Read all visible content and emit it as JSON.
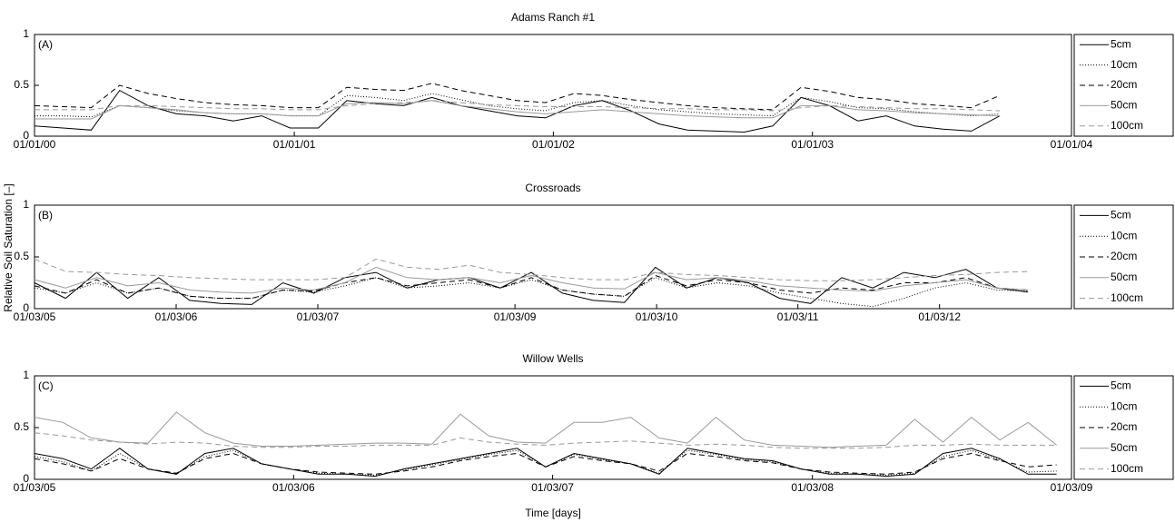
{
  "chart_data": [
    {
      "type": "line",
      "title": "Adams Ranch #1",
      "panel_label": "(A)",
      "x": [
        0,
        40,
        80,
        120,
        160,
        200,
        240,
        280,
        320,
        360,
        400,
        440,
        480,
        520,
        560,
        600,
        640,
        680,
        720,
        760,
        800,
        840,
        880,
        920,
        960,
        1000,
        1040,
        1080,
        1120,
        1160,
        1200,
        1240,
        1280,
        1320,
        1360
      ],
      "xlim": [
        0,
        1461
      ],
      "xticks": [
        {
          "value": 0,
          "label": "01/01/00"
        },
        {
          "value": 366,
          "label": "01/01/01"
        },
        {
          "value": 731,
          "label": "01/01/02"
        },
        {
          "value": 1096,
          "label": "01/01/03"
        },
        {
          "value": 1461,
          "label": "01/01/04"
        }
      ],
      "ylim": [
        0,
        1
      ],
      "yticks": [
        0,
        0.5,
        1
      ],
      "series": [
        {
          "name": "5cm",
          "color": "#000000",
          "linestyle": "solid",
          "values": [
            0.1,
            0.08,
            0.06,
            0.45,
            0.3,
            0.22,
            0.2,
            0.15,
            0.2,
            0.08,
            0.08,
            0.35,
            0.32,
            0.3,
            0.38,
            0.3,
            0.25,
            0.2,
            0.18,
            0.3,
            0.35,
            0.25,
            0.12,
            0.06,
            0.05,
            0.04,
            0.1,
            0.38,
            0.3,
            0.15,
            0.2,
            0.1,
            0.07,
            0.05,
            0.2
          ]
        },
        {
          "name": "10cm",
          "color": "#000000",
          "linestyle": "dotted",
          "values": [
            0.2,
            0.2,
            0.19,
            0.3,
            0.28,
            0.25,
            0.23,
            0.22,
            0.22,
            0.2,
            0.2,
            0.4,
            0.38,
            0.35,
            0.42,
            0.36,
            0.3,
            0.27,
            0.25,
            0.33,
            0.35,
            0.3,
            0.26,
            0.24,
            0.22,
            0.21,
            0.2,
            0.38,
            0.34,
            0.28,
            0.27,
            0.24,
            0.22,
            0.2,
            0.22
          ]
        },
        {
          "name": "20cm",
          "color": "#000000",
          "linestyle": "dashed",
          "values": [
            0.3,
            0.29,
            0.28,
            0.5,
            0.42,
            0.37,
            0.33,
            0.31,
            0.3,
            0.28,
            0.28,
            0.48,
            0.46,
            0.45,
            0.52,
            0.45,
            0.4,
            0.35,
            0.33,
            0.42,
            0.4,
            0.36,
            0.33,
            0.3,
            0.28,
            0.27,
            0.26,
            0.48,
            0.44,
            0.38,
            0.36,
            0.32,
            0.3,
            0.28,
            0.4
          ]
        },
        {
          "name": "50cm",
          "color": "#999999",
          "linestyle": "solid",
          "values": [
            0.17,
            0.17,
            0.17,
            0.3,
            0.28,
            0.26,
            0.23,
            0.22,
            0.22,
            0.2,
            0.2,
            0.32,
            0.33,
            0.32,
            0.35,
            0.3,
            0.27,
            0.24,
            0.22,
            0.24,
            0.26,
            0.24,
            0.22,
            0.2,
            0.19,
            0.18,
            0.18,
            0.3,
            0.3,
            0.26,
            0.25,
            0.23,
            0.22,
            0.21,
            0.2
          ]
        },
        {
          "name": "100cm",
          "color": "#999999",
          "linestyle": "dashed",
          "values": [
            0.26,
            0.26,
            0.26,
            0.3,
            0.3,
            0.29,
            0.28,
            0.27,
            0.27,
            0.26,
            0.26,
            0.3,
            0.32,
            0.33,
            0.35,
            0.33,
            0.31,
            0.3,
            0.29,
            0.29,
            0.29,
            0.28,
            0.27,
            0.27,
            0.26,
            0.26,
            0.25,
            0.28,
            0.3,
            0.29,
            0.28,
            0.27,
            0.27,
            0.26,
            0.25
          ]
        }
      ]
    },
    {
      "type": "line",
      "title": "Crossroads",
      "panel_label": "(B)",
      "ylabel": "Relative Soil Saturation [–]",
      "x": [
        0,
        80,
        160,
        240,
        320,
        400,
        480,
        560,
        640,
        720,
        800,
        880,
        960,
        1040,
        1120,
        1200,
        1280,
        1360,
        1440,
        1520,
        1600,
        1680,
        1760,
        1840,
        1920,
        2000,
        2080,
        2160,
        2240,
        2320,
        2400,
        2480,
        2560
      ],
      "xlim": [
        0,
        2672
      ],
      "xticks": [
        {
          "value": 0,
          "label": "01/03/05"
        },
        {
          "value": 365,
          "label": "01/03/06"
        },
        {
          "value": 730,
          "label": "01/03/07"
        },
        {
          "value": 1238,
          "label": "01/03/09"
        },
        {
          "value": 1603,
          "label": "01/03/10"
        },
        {
          "value": 1967,
          "label": "01/03/11"
        },
        {
          "value": 2332,
          "label": "01/03/12"
        }
      ],
      "ylim": [
        0,
        1
      ],
      "yticks": [
        0,
        0.5,
        1
      ],
      "series": [
        {
          "name": "5cm",
          "color": "#000000",
          "linestyle": "solid",
          "values": [
            0.25,
            0.1,
            0.35,
            0.1,
            0.3,
            0.08,
            0.05,
            0.04,
            0.25,
            0.15,
            0.3,
            0.35,
            0.2,
            0.28,
            0.3,
            0.2,
            0.35,
            0.15,
            0.08,
            0.06,
            0.4,
            0.2,
            0.3,
            0.25,
            0.1,
            0.05,
            0.3,
            0.2,
            0.35,
            0.3,
            0.38,
            0.2,
            0.16
          ]
        },
        {
          "name": "10cm",
          "color": "#000000",
          "linestyle": "dotted",
          "values": [
            0.2,
            0.15,
            0.25,
            0.15,
            0.2,
            0.12,
            0.1,
            0.1,
            0.18,
            0.16,
            0.22,
            0.3,
            0.2,
            0.22,
            0.25,
            0.2,
            0.28,
            0.18,
            0.14,
            0.12,
            0.3,
            0.2,
            0.25,
            0.22,
            0.15,
            0.1,
            0.05,
            0.02,
            0.1,
            0.2,
            0.25,
            0.18,
            0.17
          ]
        },
        {
          "name": "20cm",
          "color": "#000000",
          "linestyle": "dashed",
          "values": [
            0.22,
            0.15,
            0.28,
            0.15,
            0.2,
            0.12,
            0.1,
            0.1,
            0.18,
            0.17,
            0.25,
            0.3,
            0.22,
            0.25,
            0.28,
            0.2,
            0.3,
            0.18,
            0.14,
            0.12,
            0.32,
            0.22,
            0.28,
            0.25,
            0.18,
            0.15,
            0.2,
            0.18,
            0.25,
            0.25,
            0.3,
            0.2,
            0.18
          ]
        },
        {
          "name": "50cm",
          "color": "#999999",
          "linestyle": "solid",
          "values": [
            0.28,
            0.2,
            0.3,
            0.22,
            0.25,
            0.18,
            0.16,
            0.15,
            0.2,
            0.18,
            0.25,
            0.4,
            0.3,
            0.28,
            0.3,
            0.25,
            0.32,
            0.25,
            0.2,
            0.19,
            0.35,
            0.28,
            0.3,
            0.27,
            0.22,
            0.2,
            0.18,
            0.17,
            0.22,
            0.25,
            0.28,
            0.2,
            0.18
          ]
        },
        {
          "name": "100cm",
          "color": "#999999",
          "linestyle": "dashed",
          "values": [
            0.48,
            0.36,
            0.35,
            0.33,
            0.32,
            0.3,
            0.29,
            0.28,
            0.28,
            0.28,
            0.3,
            0.48,
            0.4,
            0.38,
            0.42,
            0.35,
            0.33,
            0.3,
            0.28,
            0.28,
            0.35,
            0.33,
            0.32,
            0.3,
            0.28,
            0.27,
            0.27,
            0.28,
            0.3,
            0.32,
            0.33,
            0.35,
            0.36
          ]
        }
      ]
    },
    {
      "type": "line",
      "title": "Willow Wells",
      "panel_label": "(C)",
      "xlabel": "Time [days]",
      "x": [
        0,
        40,
        80,
        120,
        160,
        200,
        240,
        280,
        320,
        360,
        400,
        440,
        480,
        520,
        560,
        600,
        640,
        680,
        720,
        760,
        800,
        840,
        880,
        920,
        960,
        1000,
        1040,
        1080,
        1120,
        1160,
        1200,
        1240,
        1280,
        1320,
        1360,
        1400,
        1440
      ],
      "xlim": [
        0,
        1461
      ],
      "xticks": [
        {
          "value": 0,
          "label": "01/03/05"
        },
        {
          "value": 365,
          "label": "01/03/06"
        },
        {
          "value": 730,
          "label": "01/03/07"
        },
        {
          "value": 1096,
          "label": "01/03/08"
        },
        {
          "value": 1461,
          "label": "01/03/09"
        }
      ],
      "ylim": [
        0,
        1
      ],
      "yticks": [
        0,
        0.5,
        1
      ],
      "series": [
        {
          "name": "5cm",
          "color": "#000000",
          "linestyle": "solid",
          "values": [
            0.25,
            0.2,
            0.1,
            0.3,
            0.1,
            0.05,
            0.25,
            0.3,
            0.15,
            0.1,
            0.05,
            0.05,
            0.03,
            0.1,
            0.15,
            0.2,
            0.25,
            0.3,
            0.12,
            0.25,
            0.2,
            0.15,
            0.05,
            0.3,
            0.25,
            0.2,
            0.18,
            0.1,
            0.05,
            0.05,
            0.03,
            0.05,
            0.25,
            0.3,
            0.2,
            0.05,
            0.05
          ]
        },
        {
          "name": "10cm",
          "color": "#000000",
          "linestyle": "dotted",
          "values": [
            0.22,
            0.17,
            0.08,
            0.25,
            0.1,
            0.05,
            0.22,
            0.28,
            0.15,
            0.1,
            0.06,
            0.05,
            0.04,
            0.09,
            0.14,
            0.19,
            0.24,
            0.28,
            0.12,
            0.24,
            0.19,
            0.15,
            0.06,
            0.28,
            0.24,
            0.19,
            0.17,
            0.1,
            0.06,
            0.05,
            0.04,
            0.06,
            0.22,
            0.28,
            0.19,
            0.07,
            0.08
          ]
        },
        {
          "name": "20cm",
          "color": "#000000",
          "linestyle": "dashed",
          "values": [
            0.2,
            0.15,
            0.08,
            0.2,
            0.1,
            0.06,
            0.2,
            0.25,
            0.15,
            0.1,
            0.07,
            0.06,
            0.05,
            0.08,
            0.12,
            0.18,
            0.22,
            0.25,
            0.12,
            0.22,
            0.18,
            0.15,
            0.08,
            0.25,
            0.22,
            0.18,
            0.16,
            0.1,
            0.07,
            0.06,
            0.05,
            0.07,
            0.2,
            0.25,
            0.18,
            0.12,
            0.14
          ]
        },
        {
          "name": "50cm",
          "color": "#999999",
          "linestyle": "solid",
          "values": [
            0.6,
            0.55,
            0.4,
            0.36,
            0.35,
            0.65,
            0.45,
            0.35,
            0.32,
            0.32,
            0.33,
            0.34,
            0.35,
            0.35,
            0.34,
            0.63,
            0.42,
            0.36,
            0.35,
            0.55,
            0.55,
            0.6,
            0.4,
            0.35,
            0.6,
            0.38,
            0.33,
            0.32,
            0.31,
            0.32,
            0.33,
            0.58,
            0.36,
            0.6,
            0.38,
            0.55,
            0.33
          ]
        },
        {
          "name": "100cm",
          "color": "#999999",
          "linestyle": "dashed",
          "values": [
            0.45,
            0.42,
            0.38,
            0.36,
            0.34,
            0.36,
            0.35,
            0.32,
            0.31,
            0.31,
            0.32,
            0.32,
            0.33,
            0.33,
            0.33,
            0.4,
            0.36,
            0.34,
            0.33,
            0.35,
            0.36,
            0.37,
            0.35,
            0.33,
            0.34,
            0.33,
            0.31,
            0.3,
            0.3,
            0.3,
            0.31,
            0.33,
            0.33,
            0.34,
            0.33,
            0.33,
            0.33
          ]
        }
      ]
    }
  ]
}
